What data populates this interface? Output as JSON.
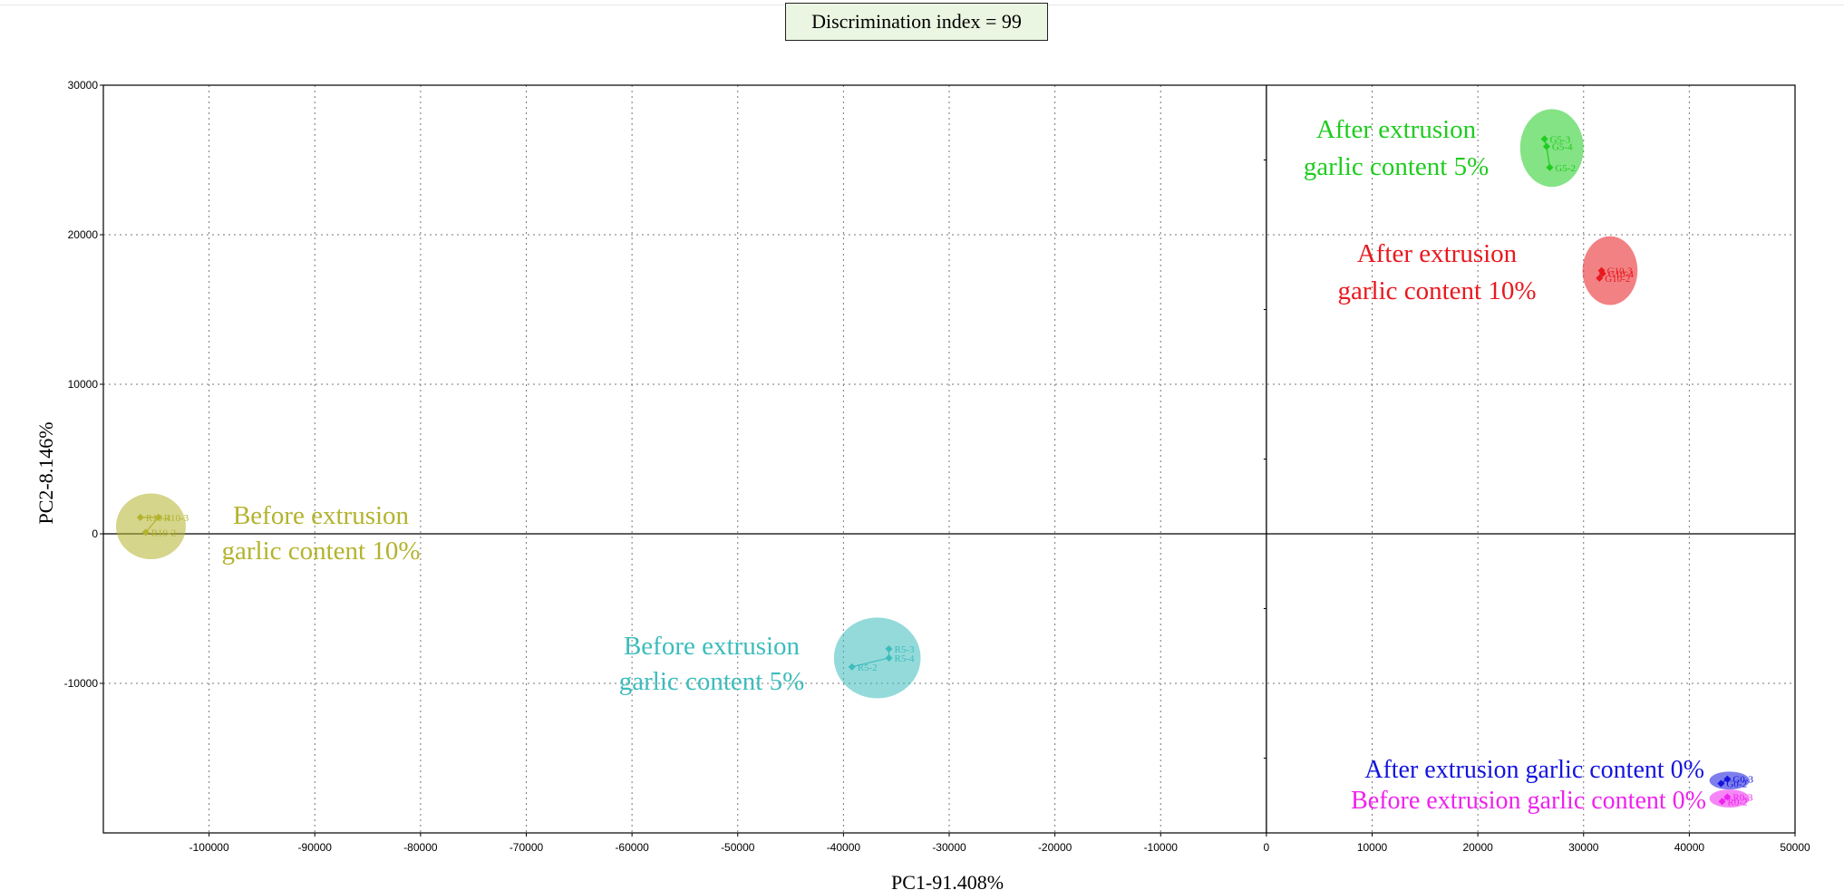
{
  "header": {
    "discrimination_label": "Discrimination index = 99"
  },
  "chart_data": {
    "type": "scatter",
    "xlabel": "PC1-91.408%",
    "ylabel": "PC2-8.146%",
    "xlim": [
      -110000,
      50000
    ],
    "ylim": [
      -20000,
      30000
    ],
    "xticks": [
      -100000,
      -90000,
      -80000,
      -70000,
      -60000,
      -50000,
      -40000,
      -30000,
      -20000,
      -10000,
      0,
      10000,
      20000,
      30000,
      40000,
      50000
    ],
    "yticks": [
      -10000,
      0,
      10000,
      20000,
      30000
    ],
    "grid": true,
    "groups": [
      {
        "label_lines": [
          "After extrusion",
          "garlic content 5%"
        ],
        "color": "#1fcc1f",
        "ellipse_center": [
          27000,
          25800
        ],
        "ellipse_radius": [
          3000,
          2600
        ],
        "points": [
          {
            "name": "G5-3",
            "x": 26300,
            "y": 26400
          },
          {
            "name": "G5-4",
            "x": 26500,
            "y": 25900
          },
          {
            "name": "G5-2",
            "x": 26800,
            "y": 24500
          }
        ]
      },
      {
        "label_lines": [
          "After extrusion",
          "garlic content 10%"
        ],
        "color": "#e8191f",
        "ellipse_center": [
          32500,
          17600
        ],
        "ellipse_radius": [
          2600,
          2300
        ],
        "points": [
          {
            "name": "G10-3",
            "x": 31700,
            "y": 17600
          },
          {
            "name": "G10-4",
            "x": 31800,
            "y": 17400
          },
          {
            "name": "G10-2",
            "x": 31500,
            "y": 17100
          }
        ]
      },
      {
        "label_lines": [
          "Before extrusion",
          "garlic content 10%"
        ],
        "color": "#b3b32e",
        "ellipse_center": [
          -105500,
          500
        ],
        "ellipse_radius": [
          3300,
          2200
        ],
        "points": [
          {
            "name": "R10-4",
            "x": -106500,
            "y": 1100
          },
          {
            "name": "R10-3",
            "x": -104800,
            "y": 1100
          },
          {
            "name": "R10-2",
            "x": -106000,
            "y": 100
          }
        ]
      },
      {
        "label_lines": [
          "Before extrusion",
          "garlic content 5%"
        ],
        "color": "#3dbcbc",
        "ellipse_center": [
          -36800,
          -8300
        ],
        "ellipse_radius": [
          4100,
          2700
        ],
        "points": [
          {
            "name": "R5-3",
            "x": -35700,
            "y": -7700
          },
          {
            "name": "R5-4",
            "x": -35700,
            "y": -8300
          },
          {
            "name": "R5-2",
            "x": -39200,
            "y": -8900
          }
        ]
      },
      {
        "label_lines": [
          "After extrusion garlic content 0%"
        ],
        "color": "#1414dd",
        "ellipse_center": [
          43800,
          -16500
        ],
        "ellipse_radius": [
          1900,
          600
        ],
        "points": [
          {
            "name": "G0-3",
            "x": 43600,
            "y": -16400
          },
          {
            "name": "G0-2",
            "x": 43000,
            "y": -16700
          }
        ]
      },
      {
        "label_lines": [
          "Before extrusion garlic content 0%"
        ],
        "color": "#ee22ee",
        "ellipse_center": [
          43800,
          -17700
        ],
        "ellipse_radius": [
          1900,
          600
        ],
        "points": [
          {
            "name": "R0-3",
            "x": 43600,
            "y": -17600
          },
          {
            "name": "R0-2",
            "x": 43100,
            "y": -17900
          }
        ]
      }
    ]
  }
}
